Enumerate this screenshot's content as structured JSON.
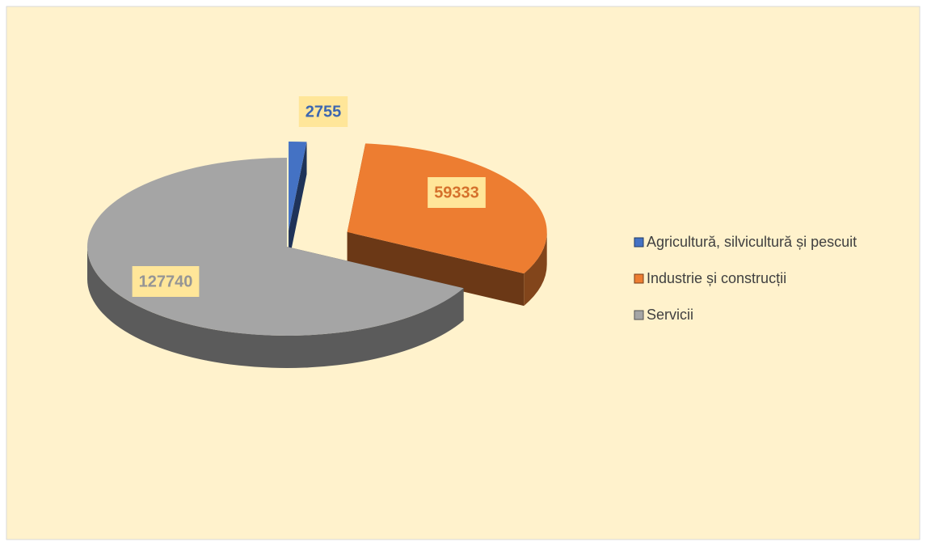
{
  "chart_data": {
    "type": "pie",
    "categories": [
      "Agricultură, silvicultură și pescuit",
      "Industrie și construcții",
      "Servicii"
    ],
    "values": [
      2755,
      59333,
      127740
    ],
    "colors": [
      "#4472c4",
      "#ed7d31",
      "#a5a5a5"
    ],
    "legend": "right"
  }
}
